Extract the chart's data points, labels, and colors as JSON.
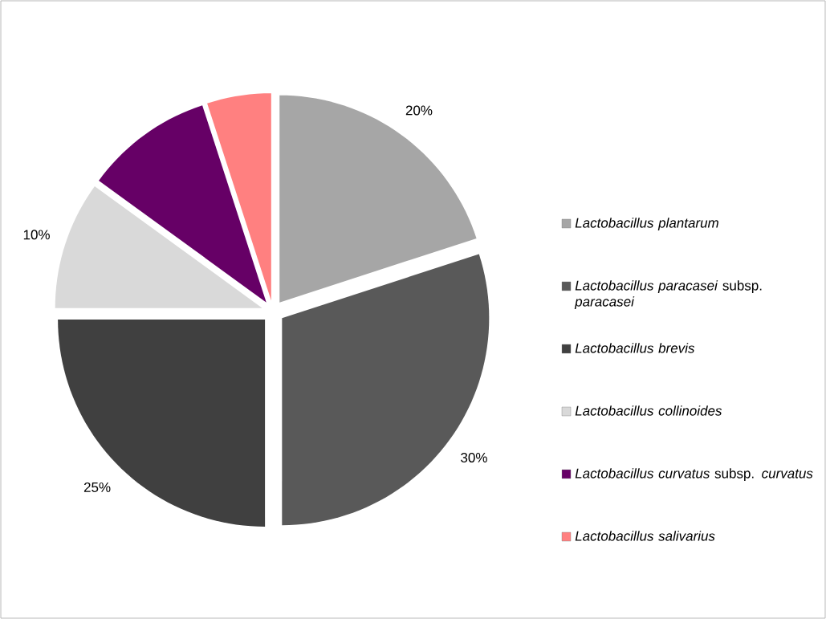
{
  "chart_data": {
    "type": "pie",
    "categories": [
      "Lactobacillus plantarum",
      "*Lactobacillus paracasei* subsp. *paracasei*",
      "Lactobacillus brevis",
      "Lactobacillus collinoides",
      "*Lactobacillus curvatus* subsp. *curvatus*",
      "Lactobacillus salivarius"
    ],
    "values": [
      20,
      30,
      25,
      10,
      10,
      5
    ],
    "colors": [
      "#a6a6a6",
      "#595959",
      "#404040",
      "#d9d9d9",
      "#660066",
      "#ff8080"
    ],
    "value_labels": [
      "20%",
      "30%",
      "25%",
      "10%",
      null,
      null
    ],
    "legend": "right"
  }
}
